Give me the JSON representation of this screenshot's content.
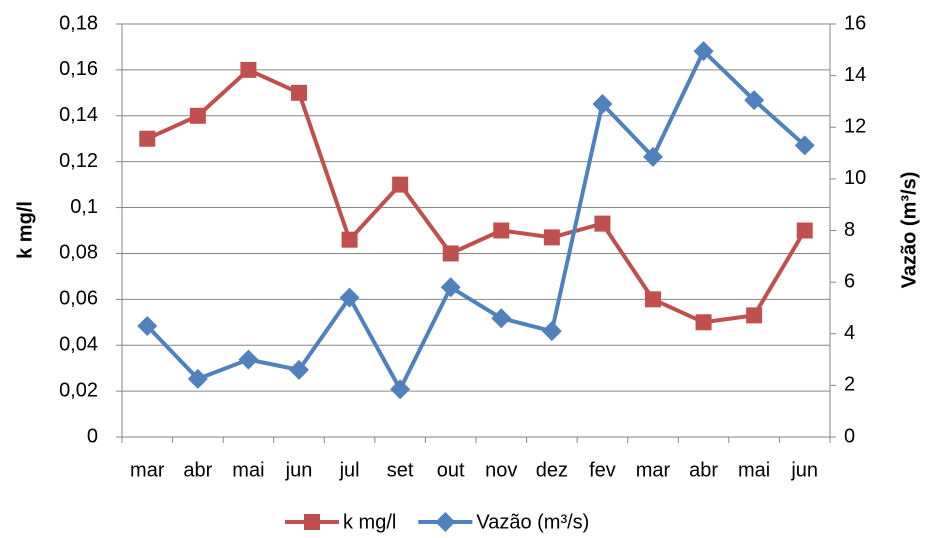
{
  "chart_data": {
    "type": "line",
    "categories": [
      "mar",
      "abr",
      "mai",
      "jun",
      "jul",
      "set",
      "out",
      "nov",
      "dez",
      "fev",
      "mar",
      "abr",
      "mai",
      "jun"
    ],
    "ylabel": "k mg/l",
    "y2label": "Vazão (m³/s)",
    "series": [
      {
        "name": "k mg/l",
        "color": "#c0504d",
        "marker": "square",
        "values": [
          0.13,
          0.14,
          0.16,
          0.15,
          0.086,
          0.11,
          0.08,
          0.09,
          0.087,
          0.093,
          0.06,
          0.05,
          0.053,
          0.09
        ]
      },
      {
        "name": "Vazão (m³/s)",
        "color": "#4f81bd",
        "marker": "diamond",
        "axis": "y2",
        "values": [
          4.3,
          2.25,
          3.0,
          2.6,
          5.4,
          1.85,
          5.8,
          4.6,
          4.1,
          12.9,
          10.85,
          14.95,
          13.05,
          11.3
        ]
      }
    ],
    "ylim": [
      0,
      0.18
    ],
    "yticks": [
      0,
      {
        "value": 0.02,
        "label": "0,02"
      },
      {
        "value": 0.04,
        "label": "0,04"
      },
      {
        "value": 0.06,
        "label": "0,06"
      },
      {
        "value": 0.08,
        "label": "0,08"
      },
      {
        "value": 0.1,
        "label": "0,1"
      },
      {
        "value": 0.12,
        "label": "0,12"
      },
      {
        "value": 0.14,
        "label": "0,14"
      },
      {
        "value": 0.16,
        "label": "0,16"
      },
      {
        "value": 0.18,
        "label": "0,18"
      }
    ],
    "y2lim": [
      0,
      16
    ],
    "y2ticks": [
      0,
      2,
      4,
      6,
      8,
      10,
      12,
      14,
      16
    ],
    "grid": true,
    "legend": "bottom"
  }
}
